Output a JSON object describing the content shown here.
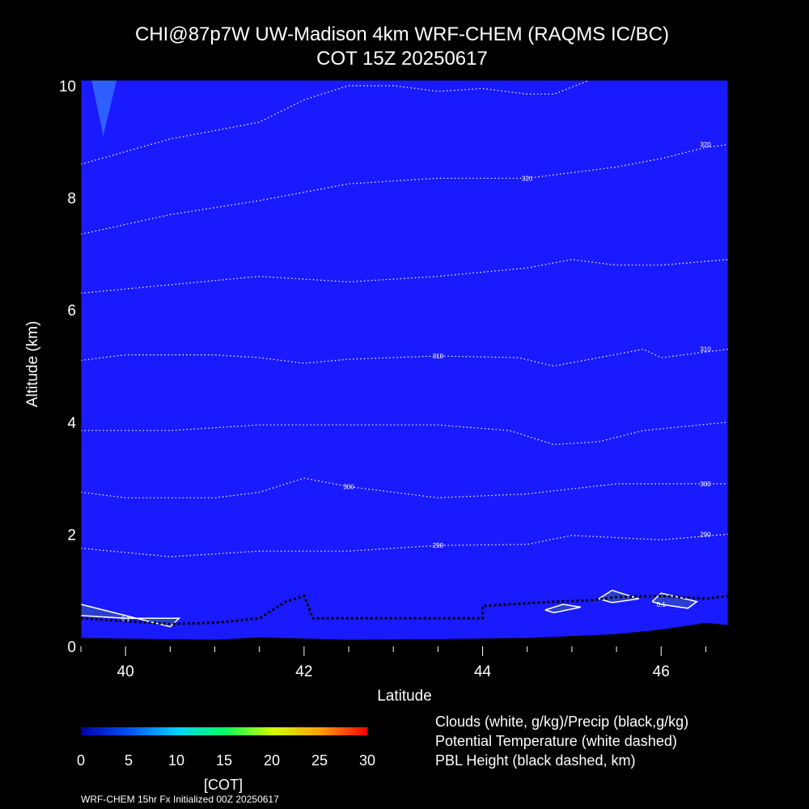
{
  "title_line1": "CHI@87p7W UW-Madison 4km WRF-CHEM (RAQMS IC/BC)",
  "title_line2": "COT 15Z 20250617",
  "colorbar": {
    "ticks": [
      "0",
      "5",
      "10",
      "15",
      "20",
      "25",
      "30"
    ],
    "label": "[COT]",
    "colors": [
      "#0000aa",
      "#0050ff",
      "#00d0ff",
      "#00ff60",
      "#d0ff00",
      "#ffa000",
      "#ff0000"
    ]
  },
  "legend": [
    "Clouds (white, g/kg)/Precip (black,g/kg)",
    "Potential Temperature (white dashed)",
    "PBL Height (black dashed, km)"
  ],
  "footer": "WRF-CHEM 15hr  Fx Initialized 00Z 20250617",
  "colors": {
    "field": "#1a1aff",
    "background": "#000000"
  },
  "chart_data": {
    "type": "contour",
    "xlabel": "Latitude",
    "ylabel": "Altitude (km)",
    "xlim": [
      39.5,
      46.75
    ],
    "ylim": [
      0,
      10.1
    ],
    "xticks": [
      "40",
      "42",
      "44",
      "46"
    ],
    "yticks": [
      "0",
      "2",
      "4",
      "6",
      "8",
      "10"
    ],
    "field_value": "COT ≈ 0 everywhere",
    "theta_contours": [
      {
        "label": "290",
        "points": [
          [
            39.5,
            1.75
          ],
          [
            40.5,
            1.6
          ],
          [
            41.5,
            1.7
          ],
          [
            42.5,
            1.7
          ],
          [
            43.5,
            1.8
          ],
          [
            44.5,
            1.82
          ],
          [
            45,
            1.98
          ],
          [
            46,
            1.9
          ],
          [
            46.75,
            2.0
          ]
        ]
      },
      {
        "label": "300",
        "points": [
          [
            39.5,
            2.75
          ],
          [
            40,
            2.65
          ],
          [
            41,
            2.65
          ],
          [
            41.5,
            2.75
          ],
          [
            42,
            3.0
          ],
          [
            42.5,
            2.85
          ],
          [
            43.5,
            2.65
          ],
          [
            44.5,
            2.72
          ],
          [
            45.5,
            2.9
          ],
          [
            46.75,
            2.9
          ]
        ]
      },
      {
        "label": "",
        "points": [
          [
            39.5,
            3.85
          ],
          [
            40.5,
            3.85
          ],
          [
            41.5,
            3.95
          ],
          [
            42.5,
            3.95
          ],
          [
            43.5,
            3.95
          ],
          [
            44.3,
            3.85
          ],
          [
            44.8,
            3.6
          ],
          [
            45.3,
            3.65
          ],
          [
            45.8,
            3.85
          ],
          [
            46.75,
            4.0
          ]
        ]
      },
      {
        "label": "310",
        "points": [
          [
            39.5,
            5.1
          ],
          [
            40,
            5.2
          ],
          [
            41,
            5.2
          ],
          [
            41.5,
            5.15
          ],
          [
            42,
            5.05
          ],
          [
            42.5,
            5.12
          ],
          [
            43.5,
            5.18
          ],
          [
            44.4,
            5.15
          ],
          [
            44.8,
            5.0
          ],
          [
            45.3,
            5.15
          ],
          [
            45.8,
            5.3
          ],
          [
            46,
            5.15
          ],
          [
            46.75,
            5.3
          ]
        ]
      },
      {
        "label": "",
        "points": [
          [
            39.5,
            6.3
          ],
          [
            40.5,
            6.45
          ],
          [
            41.5,
            6.6
          ],
          [
            42.5,
            6.5
          ],
          [
            43.5,
            6.6
          ],
          [
            44.5,
            6.75
          ],
          [
            45,
            6.9
          ],
          [
            45.5,
            6.8
          ],
          [
            46,
            6.8
          ],
          [
            46.75,
            6.9
          ]
        ]
      },
      {
        "label": "320",
        "points": [
          [
            39.5,
            7.35
          ],
          [
            40.5,
            7.7
          ],
          [
            41.5,
            7.95
          ],
          [
            42.5,
            8.25
          ],
          [
            43.5,
            8.35
          ],
          [
            44.5,
            8.35
          ],
          [
            45,
            8.45
          ],
          [
            45.5,
            8.55
          ],
          [
            46,
            8.7
          ],
          [
            46.5,
            8.9
          ],
          [
            46.75,
            8.95
          ]
        ]
      },
      {
        "label": "",
        "points": [
          [
            39.5,
            8.6
          ],
          [
            40.5,
            9.05
          ],
          [
            41.5,
            9.35
          ],
          [
            42,
            9.75
          ],
          [
            42.5,
            10.0
          ],
          [
            43,
            10.0
          ],
          [
            43.5,
            9.9
          ],
          [
            44,
            9.95
          ],
          [
            44.5,
            9.85
          ],
          [
            44.8,
            9.85
          ],
          [
            45.2,
            10.1
          ]
        ]
      }
    ],
    "cloud_contours": [
      {
        "label": "0.1",
        "points": [
          [
            39.5,
            0.75
          ],
          [
            40,
            0.55
          ],
          [
            40.5,
            0.35
          ],
          [
            40.6,
            0.5
          ],
          [
            40,
            0.5
          ],
          [
            39.5,
            0.55
          ]
        ]
      },
      {
        "label": "",
        "points": [
          [
            44.7,
            0.65
          ],
          [
            44.9,
            0.75
          ],
          [
            45.1,
            0.7
          ],
          [
            44.8,
            0.6
          ],
          [
            44.7,
            0.65
          ]
        ]
      },
      {
        "label": "",
        "points": [
          [
            45.3,
            0.85
          ],
          [
            45.45,
            1.0
          ],
          [
            45.75,
            0.85
          ],
          [
            45.45,
            0.78
          ],
          [
            45.3,
            0.85
          ]
        ]
      },
      {
        "label": "0.1",
        "points": [
          [
            45.9,
            0.8
          ],
          [
            46.0,
            0.95
          ],
          [
            46.4,
            0.8
          ],
          [
            46.3,
            0.68
          ],
          [
            46.0,
            0.75
          ],
          [
            45.9,
            0.8
          ]
        ]
      }
    ],
    "pbl_height_km": [
      [
        39.5,
        0.5
      ],
      [
        40,
        0.45
      ],
      [
        40.5,
        0.4
      ],
      [
        41,
        0.42
      ],
      [
        41.5,
        0.5
      ],
      [
        41.8,
        0.8
      ],
      [
        42,
        0.9
      ],
      [
        42.1,
        0.5
      ],
      [
        44,
        0.5
      ],
      [
        44,
        0.72
      ],
      [
        44.8,
        0.8
      ],
      [
        45.2,
        0.82
      ],
      [
        45.5,
        0.88
      ],
      [
        46,
        0.9
      ],
      [
        46.5,
        0.85
      ],
      [
        46.75,
        0.9
      ]
    ],
    "terrain_km": [
      [
        39.5,
        0.15
      ],
      [
        41,
        0.12
      ],
      [
        41.5,
        0.16
      ],
      [
        42.5,
        0.12
      ],
      [
        43.5,
        0.13
      ],
      [
        44.5,
        0.15
      ],
      [
        45.5,
        0.22
      ],
      [
        46,
        0.3
      ],
      [
        46.5,
        0.42
      ],
      [
        46.75,
        0.38
      ]
    ]
  }
}
